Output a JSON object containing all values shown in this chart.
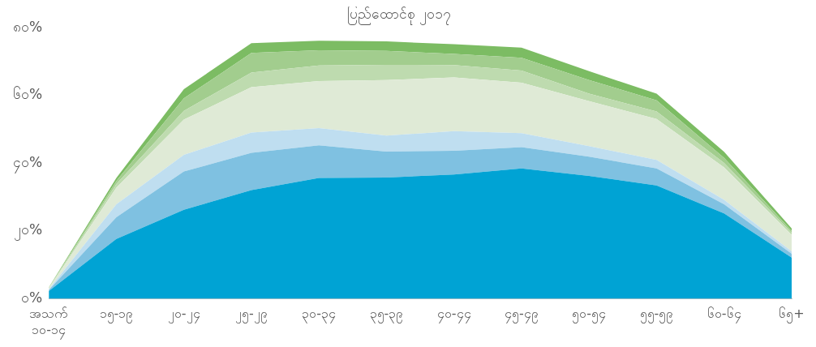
{
  "chart_data": {
    "type": "area",
    "title": "ပြည်ထောင်စု ၂၀၁၇",
    "stacked": true,
    "categories": [
      "အသက် ၁၀-၁၄",
      "၁၅-၁၉",
      "၂၀-၂၄",
      "၂၅-၂၉",
      "၃၀-၃၄",
      "၃၅-၃၉",
      "၄၀-၄၄",
      "၄၅-၄၉",
      "၅၀-၅၄",
      "၅၅-၅၉",
      "၆၀-၆၄",
      "၆၅+"
    ],
    "series": [
      {
        "color": "#00a3d4",
        "values": [
          2.3,
          17.7,
          26.3,
          32.1,
          35.7,
          35.8,
          36.7,
          38.5,
          36.3,
          33.5,
          25.2,
          12.2
        ]
      },
      {
        "color": "#7fc1e1",
        "values": [
          0.3,
          6.4,
          11.3,
          11.0,
          9.6,
          7.7,
          7.0,
          6.3,
          5.7,
          5.0,
          2.7,
          1.1
        ]
      },
      {
        "color": "#bfdef0",
        "values": [
          0.2,
          3.8,
          4.9,
          6.0,
          5.1,
          4.7,
          5.8,
          4.1,
          3.1,
          2.5,
          1.3,
          0.7
        ]
      },
      {
        "color": "#dfead6",
        "values": [
          0.3,
          4.9,
          10.4,
          13.4,
          13.9,
          16.4,
          15.9,
          14.9,
          13.3,
          12.1,
          9.6,
          4.9
        ]
      },
      {
        "color": "#bedbaf",
        "values": [
          0.1,
          1.1,
          2.6,
          4.3,
          4.6,
          4.5,
          3.6,
          3.6,
          2.2,
          2.2,
          1.3,
          0.6
        ]
      },
      {
        "color": "#a2cd8e",
        "values": [
          0.1,
          0.9,
          3.7,
          5.8,
          4.5,
          4.1,
          3.3,
          3.8,
          4.0,
          3.3,
          1.5,
          0.6
        ]
      },
      {
        "color": "#7cbc63",
        "values": [
          0.1,
          0.9,
          2.7,
          2.9,
          2.8,
          2.8,
          2.9,
          3.0,
          2.6,
          2.0,
          1.8,
          0.7
        ]
      }
    ],
    "ylim": [
      0,
      80
    ],
    "yticks": [
      {
        "value": 0,
        "label": "၀%"
      },
      {
        "value": 20,
        "label": "၂၀%"
      },
      {
        "value": 40,
        "label": "၄၀%"
      },
      {
        "value": 60,
        "label": "၆၀%"
      },
      {
        "value": 80,
        "label": "၈၀%"
      }
    ],
    "grid": false,
    "legend": false
  }
}
